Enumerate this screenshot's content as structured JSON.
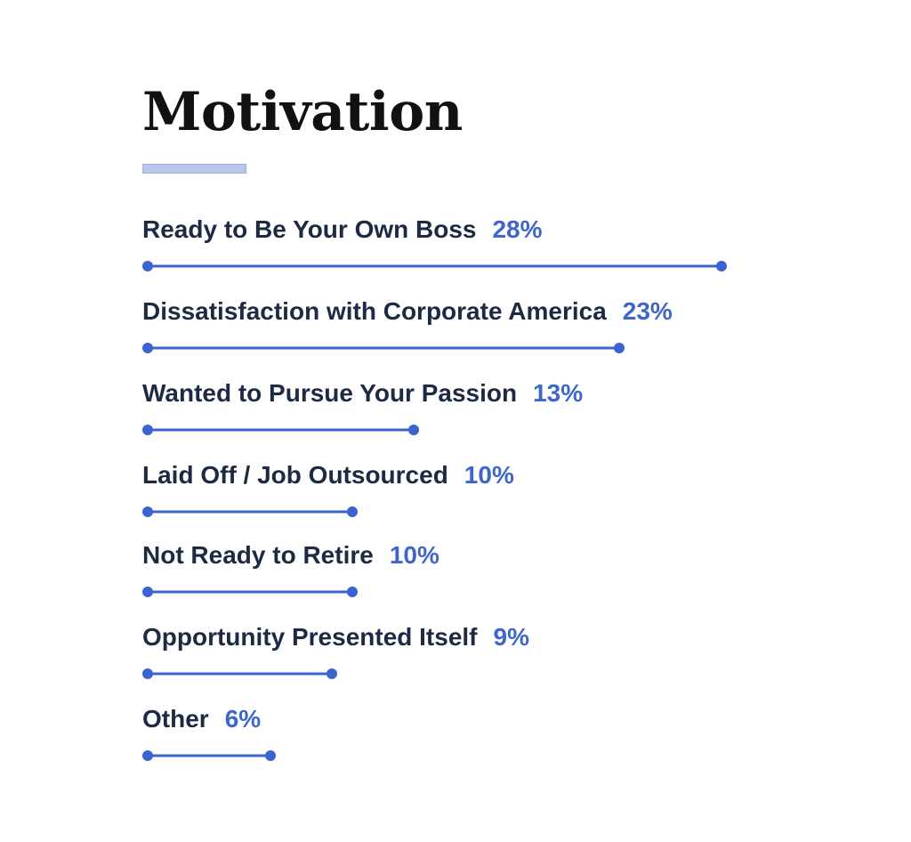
{
  "header": {
    "title": "Motivation"
  },
  "colors": {
    "accent": "#3a63cf",
    "label": "#1d2a44",
    "underline": "#b8c7ea"
  },
  "chart_data": {
    "type": "bar",
    "orientation": "horizontal",
    "title": "Motivation",
    "xlabel": "",
    "ylabel": "",
    "categories": [
      "Ready to Be Your Own Boss",
      "Dissatisfaction with Corporate America",
      "Wanted to Pursue Your Passion",
      "Laid Off / Job Outsourced",
      "Not Ready to Retire",
      "Opportunity Presented Itself",
      "Other"
    ],
    "values": [
      28,
      23,
      13,
      10,
      10,
      9,
      6
    ],
    "value_labels": [
      "28%",
      "23%",
      "13%",
      "10%",
      "10%",
      "9%",
      "6%"
    ],
    "unit": "%",
    "grid": false,
    "legend": "none"
  }
}
